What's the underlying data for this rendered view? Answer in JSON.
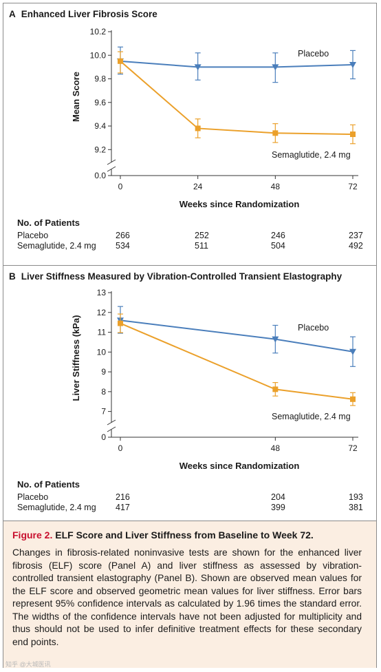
{
  "panel_a": {
    "letter": "A",
    "title": "Enhanced Liver Fibrosis Score",
    "ylabel": "Mean Score",
    "xlabel": "Weeks since Randomization",
    "series_labels": {
      "placebo": "Placebo",
      "sema": "Semaglutide, 2.4 mg"
    },
    "table": {
      "heading": "No. of Patients",
      "rows": [
        {
          "label": "Placebo",
          "values": [
            "266",
            "252",
            "246",
            "237"
          ]
        },
        {
          "label": "Semaglutide, 2.4 mg",
          "values": [
            "534",
            "511",
            "504",
            "492"
          ]
        }
      ]
    }
  },
  "panel_b": {
    "letter": "B",
    "title": "Liver Stiffness Measured by Vibration-Controlled Transient Elastography",
    "ylabel": "Liver Stiffness (kPa)",
    "xlabel": "Weeks since Randomization",
    "series_labels": {
      "placebo": "Placebo",
      "sema": "Semaglutide, 2.4 mg"
    },
    "table": {
      "heading": "No. of Patients",
      "rows": [
        {
          "label": "Placebo",
          "values": [
            "216",
            "204",
            "193"
          ]
        },
        {
          "label": "Semaglutide, 2.4 mg",
          "values": [
            "417",
            "399",
            "381"
          ]
        }
      ]
    }
  },
  "caption": {
    "label": "Figure 2.",
    "title": "ELF Score and Liver Stiffness from Baseline to Week 72.",
    "body": "Changes in fibrosis-related noninvasive tests are shown for the enhanced liver fibrosis (ELF) score (Panel A) and liver stiffness as assessed by vibration-controlled transient elastography (Panel B). Shown are observed mean values for the ELF score and observed geometric mean values for liver stiffness. Error bars represent 95% confidence intervals as calculated by 1.96 times the standard error. The widths of the confidence intervals have not been adjusted for multiplicity and thus should not be used to infer definitive treatment effects for these secondary end points."
  },
  "watermark": "知乎 @大城医讯",
  "colors": {
    "placebo": "#4a7ebb",
    "sema": "#eba02a",
    "caption_bg": "#fbeee2",
    "figure_label": "#c8102e"
  },
  "chart_data": [
    {
      "type": "line",
      "title": "Enhanced Liver Fibrosis Score",
      "xlabel": "Weeks since Randomization",
      "ylabel": "Mean Score",
      "x": [
        0,
        24,
        48,
        72
      ],
      "yticks": [
        "0.0",
        "9.2",
        "9.4",
        "9.6",
        "9.8",
        "10.0",
        "10.2"
      ],
      "ylim": [
        9.1,
        10.2
      ],
      "axis_break": true,
      "series": [
        {
          "name": "Placebo",
          "values": [
            9.95,
            9.9,
            9.9,
            9.92
          ],
          "ci_low": [
            9.84,
            9.79,
            9.77,
            9.8
          ],
          "ci_high": [
            10.07,
            10.02,
            10.02,
            10.04
          ],
          "marker": "triangle-down"
        },
        {
          "name": "Semaglutide, 2.4 mg",
          "values": [
            9.95,
            9.38,
            9.34,
            9.33
          ],
          "ci_low": [
            9.85,
            9.3,
            9.26,
            9.25
          ],
          "ci_high": [
            10.03,
            9.46,
            9.42,
            9.41
          ],
          "marker": "square"
        }
      ]
    },
    {
      "type": "line",
      "title": "Liver Stiffness Measured by Vibration-Controlled Transient Elastography",
      "xlabel": "Weeks since Randomization",
      "ylabel": "Liver Stiffness (kPa)",
      "x": [
        0,
        48,
        72
      ],
      "xticks": [
        "0",
        "48",
        "72"
      ],
      "yticks": [
        "0",
        "7",
        "8",
        "9",
        "10",
        "11",
        "12",
        "13"
      ],
      "ylim": [
        6.5,
        13
      ],
      "axis_break": true,
      "series": [
        {
          "name": "Placebo",
          "values": [
            11.6,
            10.65,
            10.02
          ],
          "ci_low": [
            10.95,
            9.95,
            9.27
          ],
          "ci_high": [
            12.3,
            11.35,
            10.77
          ],
          "marker": "triangle-down"
        },
        {
          "name": "Semaglutide, 2.4 mg",
          "values": [
            11.45,
            8.12,
            7.62
          ],
          "ci_low": [
            10.98,
            7.78,
            7.3
          ],
          "ci_high": [
            11.92,
            8.46,
            7.95
          ],
          "marker": "square"
        }
      ]
    }
  ]
}
